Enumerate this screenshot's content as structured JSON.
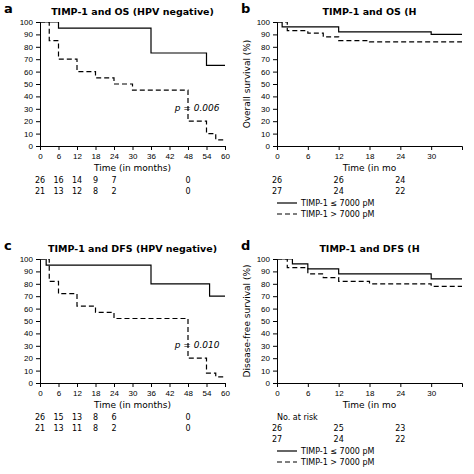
{
  "chart_data": [
    {
      "type": "step",
      "label": "a",
      "title": "TIMP-1 and OS (HPV negative)",
      "x_label": "Time (in months)",
      "xlim": [
        0,
        60
      ],
      "ylim": [
        0,
        100
      ],
      "xticks": [
        0,
        6,
        12,
        18,
        24,
        30,
        36,
        42,
        48,
        54,
        60
      ],
      "yticks": [
        0,
        10,
        20,
        30,
        40,
        50,
        60,
        70,
        80,
        90,
        100
      ],
      "pvalue": "p = 0.006",
      "at_risk_x": [
        0,
        6,
        12,
        18,
        24,
        48
      ],
      "series": [
        {
          "color": "#000000",
          "line_style": "solid",
          "x": [
            0,
            6,
            6,
            18,
            18,
            36,
            36,
            48,
            48,
            54,
            54,
            60
          ],
          "values": [
            100,
            100,
            95,
            95,
            95,
            95,
            75,
            75,
            75,
            75,
            65,
            65
          ],
          "at_risk": [
            26,
            16,
            14,
            9,
            7,
            0
          ]
        },
        {
          "color": "#000000",
          "line_style": "dashed",
          "x": [
            0,
            3,
            3,
            6,
            6,
            12,
            12,
            18,
            18,
            24,
            24,
            30,
            30,
            48,
            48,
            54,
            54,
            57,
            57,
            60
          ],
          "values": [
            100,
            100,
            85,
            85,
            70,
            70,
            60,
            60,
            55,
            55,
            50,
            50,
            45,
            45,
            20,
            20,
            10,
            10,
            5,
            5
          ],
          "at_risk": [
            21,
            13,
            12,
            8,
            2,
            0
          ]
        }
      ]
    },
    {
      "type": "step",
      "label": "b",
      "title": "TIMP-1 and OS (H",
      "x_label": "Time (in mo",
      "y_label": "Overall survival (%)",
      "xlim": [
        0,
        36
      ],
      "ylim": [
        0,
        100
      ],
      "xticks": [
        0,
        6,
        12,
        18,
        24,
        30
      ],
      "yticks": [
        0,
        10,
        20,
        30,
        40,
        50,
        60,
        70,
        80,
        90,
        100
      ],
      "legend": "below",
      "at_risk_x": [
        0,
        12,
        24
      ],
      "series": [
        {
          "name": "TIMP-1 ≤ 7000 pM",
          "color": "#000000",
          "line_style": "solid",
          "x": [
            0,
            1,
            1,
            12,
            12,
            24,
            24,
            30,
            30,
            36
          ],
          "values": [
            100,
            100,
            96,
            96,
            92,
            92,
            92,
            92,
            90,
            90
          ],
          "at_risk": [
            26,
            26,
            24
          ]
        },
        {
          "name": "TIMP-1 > 7000 pM",
          "color": "#000000",
          "line_style": "dashed",
          "x": [
            0,
            2,
            2,
            6,
            6,
            9,
            9,
            12,
            12,
            18,
            18,
            36
          ],
          "values": [
            100,
            100,
            93,
            93,
            91,
            91,
            88,
            88,
            85,
            85,
            84,
            84
          ],
          "at_risk": [
            27,
            24,
            22
          ]
        }
      ]
    },
    {
      "type": "step",
      "label": "c",
      "title": "TIMP-1 and DFS (HPV negative)",
      "x_label": "Time (in months)",
      "xlim": [
        0,
        60
      ],
      "ylim": [
        0,
        100
      ],
      "xticks": [
        0,
        6,
        12,
        18,
        24,
        30,
        36,
        42,
        48,
        54,
        60
      ],
      "yticks": [
        0,
        10,
        20,
        30,
        40,
        50,
        60,
        70,
        80,
        90,
        100
      ],
      "pvalue": "p = 0.010",
      "at_risk_x": [
        0,
        6,
        12,
        18,
        24,
        48
      ],
      "series": [
        {
          "color": "#000000",
          "line_style": "solid",
          "x": [
            0,
            2,
            2,
            12,
            12,
            36,
            36,
            48,
            48,
            55,
            55,
            60
          ],
          "values": [
            100,
            100,
            95,
            95,
            95,
            95,
            80,
            80,
            80,
            80,
            70,
            70
          ],
          "at_risk": [
            26,
            15,
            13,
            8,
            6,
            0
          ]
        },
        {
          "color": "#000000",
          "line_style": "dashed",
          "x": [
            0,
            3,
            3,
            6,
            6,
            12,
            12,
            18,
            18,
            24,
            24,
            48,
            48,
            54,
            54,
            57,
            57,
            60
          ],
          "values": [
            100,
            100,
            82,
            82,
            72,
            72,
            62,
            62,
            57,
            57,
            52,
            52,
            20,
            20,
            8,
            8,
            5,
            5
          ],
          "at_risk": [
            21,
            13,
            11,
            8,
            2,
            0
          ]
        }
      ]
    },
    {
      "type": "step",
      "label": "d",
      "title": "TIMP-1 and DFS (H",
      "x_label": "Time (in mo",
      "y_label": "Disease-free survival (%)",
      "xlim": [
        0,
        36
      ],
      "ylim": [
        0,
        100
      ],
      "xticks": [
        0,
        6,
        12,
        18,
        24,
        30
      ],
      "yticks": [
        0,
        10,
        20,
        30,
        40,
        50,
        60,
        70,
        80,
        90,
        100
      ],
      "legend": "below",
      "at_risk_label": "No. at risk",
      "at_risk_x": [
        0,
        12,
        24
      ],
      "series": [
        {
          "name": "TIMP-1 ≤ 7000 pM",
          "color": "#000000",
          "line_style": "solid",
          "x": [
            0,
            3,
            3,
            6,
            6,
            12,
            12,
            24,
            24,
            30,
            30,
            36
          ],
          "values": [
            100,
            100,
            96,
            96,
            92,
            92,
            88,
            88,
            88,
            88,
            84,
            84
          ],
          "at_risk": [
            26,
            25,
            23
          ]
        },
        {
          "name": "TIMP-1 > 7000 pM",
          "color": "#000000",
          "line_style": "dashed",
          "x": [
            0,
            2,
            2,
            6,
            6,
            9,
            9,
            12,
            12,
            18,
            18,
            24,
            24,
            30,
            30,
            36
          ],
          "values": [
            100,
            100,
            93,
            93,
            88,
            88,
            85,
            85,
            82,
            82,
            80,
            80,
            80,
            80,
            78,
            78
          ],
          "at_risk": [
            27,
            24,
            22
          ]
        }
      ]
    }
  ]
}
